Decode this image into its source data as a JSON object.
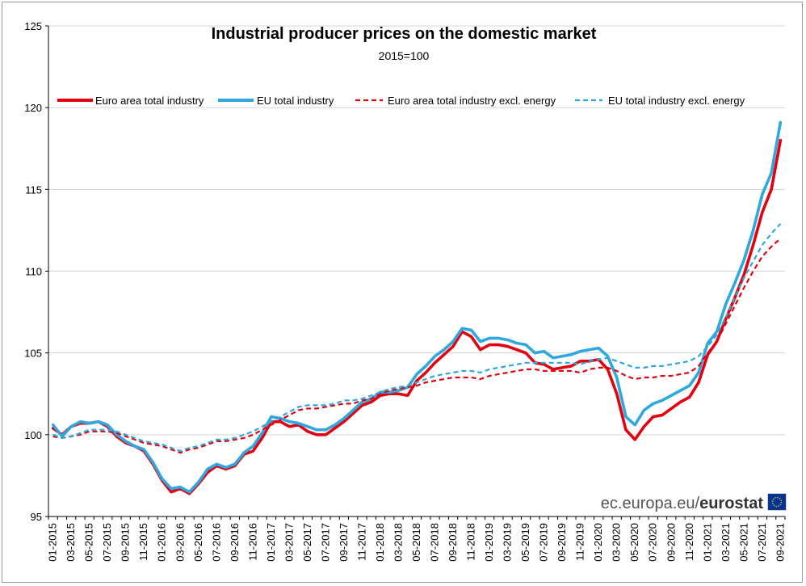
{
  "chart_data": {
    "type": "line",
    "title": "Industrial producer prices on the domestic market",
    "subtitle": "2015=100",
    "ylim": [
      95,
      125
    ],
    "yticks": [
      95,
      100,
      105,
      110,
      115,
      120,
      125
    ],
    "grid": true,
    "legend_position": "top",
    "x": [
      "01-2015",
      "02-2015",
      "03-2015",
      "04-2015",
      "05-2015",
      "06-2015",
      "07-2015",
      "08-2015",
      "09-2015",
      "10-2015",
      "11-2015",
      "12-2015",
      "01-2016",
      "02-2016",
      "03-2016",
      "04-2016",
      "05-2016",
      "06-2016",
      "07-2016",
      "08-2016",
      "09-2016",
      "10-2016",
      "11-2016",
      "12-2016",
      "01-2017",
      "02-2017",
      "03-2017",
      "04-2017",
      "05-2017",
      "06-2017",
      "07-2017",
      "08-2017",
      "09-2017",
      "10-2017",
      "11-2017",
      "12-2017",
      "01-2018",
      "02-2018",
      "03-2018",
      "04-2018",
      "05-2018",
      "06-2018",
      "07-2018",
      "08-2018",
      "09-2018",
      "10-2018",
      "11-2018",
      "12-2018",
      "01-2019",
      "02-2019",
      "03-2019",
      "04-2019",
      "05-2019",
      "06-2019",
      "07-2019",
      "08-2019",
      "09-2019",
      "10-2019",
      "11-2019",
      "12-2019",
      "01-2020",
      "02-2020",
      "03-2020",
      "04-2020",
      "05-2020",
      "06-2020",
      "07-2020",
      "08-2020",
      "09-2020",
      "10-2020",
      "11-2020",
      "12-2020",
      "01-2021",
      "02-2021",
      "03-2021",
      "04-2021",
      "05-2021",
      "06-2021",
      "07-2021",
      "08-2021",
      "09-2021"
    ],
    "xtick_labels": [
      "01-2015",
      "03-2015",
      "05-2015",
      "07-2015",
      "09-2015",
      "11-2015",
      "01-2016",
      "03-2016",
      "05-2016",
      "07-2016",
      "09-2016",
      "11-2016",
      "01-2017",
      "03-2017",
      "05-2017",
      "07-2017",
      "09-2017",
      "11-2017",
      "01-2018",
      "03-2018",
      "05-2018",
      "07-2018",
      "09-2018",
      "11-2018",
      "01-2019",
      "03-2019",
      "05-2019",
      "07-2019",
      "09-2019",
      "11-2019",
      "01-2020",
      "03-2020",
      "05-2020",
      "07-2020",
      "09-2020",
      "11-2020",
      "01-2021",
      "03-2021",
      "05-2021",
      "07-2021",
      "09-2021"
    ],
    "series": [
      {
        "name": "Euro area total industry",
        "color": "#e3000f",
        "style": "solid",
        "values": [
          100.4,
          100.0,
          100.5,
          100.7,
          100.7,
          100.8,
          100.5,
          99.9,
          99.5,
          99.3,
          99.0,
          98.2,
          97.2,
          96.5,
          96.7,
          96.4,
          97.0,
          97.7,
          98.1,
          97.9,
          98.1,
          98.8,
          99.0,
          99.8,
          100.8,
          100.8,
          100.5,
          100.6,
          100.2,
          100.0,
          100.0,
          100.4,
          100.8,
          101.3,
          101.8,
          102.0,
          102.4,
          102.5,
          102.5,
          102.4,
          103.3,
          103.8,
          104.4,
          104.9,
          105.4,
          106.3,
          106.0,
          105.2,
          105.5,
          105.5,
          105.4,
          105.2,
          105.0,
          104.4,
          104.3,
          104.0,
          104.1,
          104.2,
          104.5,
          104.5,
          104.6,
          104.0,
          102.5,
          100.3,
          99.7,
          100.5,
          101.1,
          101.2,
          101.6,
          102.0,
          102.3,
          103.2,
          104.9,
          105.7,
          107.1,
          108.4,
          109.8,
          111.6,
          113.6,
          115.0,
          118.0
        ]
      },
      {
        "name": "EU total industry",
        "color": "#2ea8de",
        "style": "solid",
        "values": [
          100.6,
          99.9,
          100.5,
          100.8,
          100.7,
          100.8,
          100.6,
          100.0,
          99.6,
          99.3,
          99.1,
          98.3,
          97.3,
          96.7,
          96.8,
          96.5,
          97.1,
          97.9,
          98.2,
          98.0,
          98.2,
          98.9,
          99.3,
          100.1,
          101.1,
          101.0,
          100.8,
          100.7,
          100.5,
          100.3,
          100.3,
          100.6,
          101.0,
          101.5,
          102.0,
          102.2,
          102.6,
          102.6,
          102.7,
          102.9,
          103.7,
          104.2,
          104.8,
          105.2,
          105.7,
          106.5,
          106.4,
          105.7,
          105.9,
          105.9,
          105.8,
          105.6,
          105.5,
          105.0,
          105.1,
          104.7,
          104.8,
          104.9,
          105.1,
          105.2,
          105.3,
          104.8,
          103.5,
          101.1,
          100.6,
          101.5,
          101.9,
          102.1,
          102.4,
          102.7,
          103.0,
          103.8,
          105.6,
          106.3,
          108.0,
          109.3,
          110.7,
          112.5,
          114.7,
          116.0,
          119.1
        ]
      },
      {
        "name": "Euro area total industry excl. energy",
        "color": "#e3000f",
        "style": "dashed",
        "values": [
          99.9,
          99.8,
          99.9,
          100.0,
          100.2,
          100.2,
          100.2,
          100.1,
          99.9,
          99.7,
          99.5,
          99.4,
          99.3,
          99.1,
          98.9,
          99.1,
          99.2,
          99.4,
          99.6,
          99.6,
          99.7,
          99.8,
          100.0,
          100.3,
          100.6,
          100.9,
          101.2,
          101.5,
          101.6,
          101.6,
          101.7,
          101.8,
          101.9,
          101.9,
          102.1,
          102.2,
          102.5,
          102.7,
          102.8,
          102.9,
          103.0,
          103.2,
          103.3,
          103.4,
          103.5,
          103.5,
          103.5,
          103.4,
          103.6,
          103.7,
          103.8,
          103.9,
          104.0,
          104.0,
          103.9,
          103.9,
          103.9,
          103.9,
          103.8,
          104.0,
          104.1,
          104.1,
          103.9,
          103.6,
          103.4,
          103.5,
          103.5,
          103.6,
          103.6,
          103.7,
          103.8,
          104.2,
          105.0,
          105.7,
          106.8,
          107.9,
          109.0,
          110.0,
          110.9,
          111.5,
          112.0
        ]
      },
      {
        "name": "EU total industry excl. energy",
        "color": "#2ea8de",
        "style": "dashed",
        "values": [
          100.0,
          99.8,
          99.9,
          100.1,
          100.3,
          100.3,
          100.3,
          100.2,
          100.0,
          99.8,
          99.6,
          99.5,
          99.4,
          99.2,
          99.0,
          99.2,
          99.3,
          99.5,
          99.7,
          99.7,
          99.8,
          100.0,
          100.2,
          100.5,
          100.8,
          101.1,
          101.4,
          101.7,
          101.8,
          101.8,
          101.8,
          101.9,
          102.1,
          102.1,
          102.2,
          102.4,
          102.6,
          102.8,
          102.9,
          103.0,
          103.2,
          103.4,
          103.6,
          103.7,
          103.8,
          103.9,
          103.9,
          103.8,
          104.0,
          104.1,
          104.2,
          104.3,
          104.4,
          104.4,
          104.4,
          104.4,
          104.4,
          104.4,
          104.3,
          104.5,
          104.6,
          104.7,
          104.5,
          104.3,
          104.1,
          104.1,
          104.2,
          104.2,
          104.3,
          104.4,
          104.5,
          104.8,
          105.4,
          106.1,
          107.2,
          108.4,
          109.6,
          110.6,
          111.6,
          112.3,
          112.9
        ]
      }
    ]
  },
  "source": {
    "prefix": "ec.europa.eu/",
    "brand": "eurostat",
    "icon": "eu-flag-icon"
  }
}
